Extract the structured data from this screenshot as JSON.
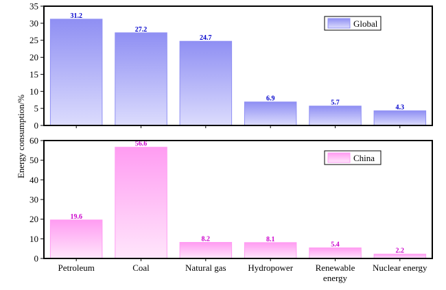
{
  "chart_data": {
    "type": "bar",
    "categories": [
      "Petroleum",
      "Coal",
      "Natural gas",
      "Hydropower",
      "Renewable energy",
      "Nuclear energy"
    ],
    "ylabel": "Energy consumption/%",
    "panels": [
      {
        "name": "Global",
        "values": [
          31.2,
          27.2,
          24.7,
          6.9,
          5.7,
          4.3
        ],
        "value_labels": [
          "31.2",
          "27.2",
          "24.7",
          "6.9",
          "5.7",
          "4.3"
        ],
        "ylim": [
          0,
          35
        ],
        "yticks": [
          "0",
          "5",
          "10",
          "15",
          "20",
          "25",
          "30",
          "35"
        ],
        "legend_position": "top-right",
        "color_top": "#8f8ff3",
        "color_bottom": "#dcdcfd",
        "label_color": "#0000cc"
      },
      {
        "name": "China",
        "values": [
          19.6,
          56.6,
          8.2,
          8.1,
          5.4,
          2.2
        ],
        "value_labels": [
          "19.6",
          "56.6",
          "8.2",
          "8.1",
          "5.4",
          "2.2"
        ],
        "ylim": [
          0,
          60
        ],
        "yticks": [
          "0",
          "10",
          "20",
          "30",
          "40",
          "50",
          "60"
        ],
        "legend_position": "top-right",
        "color_top": "#ff9cf2",
        "color_bottom": "#ffe6fb",
        "label_color": "#cc00cc"
      }
    ],
    "grid": false
  }
}
